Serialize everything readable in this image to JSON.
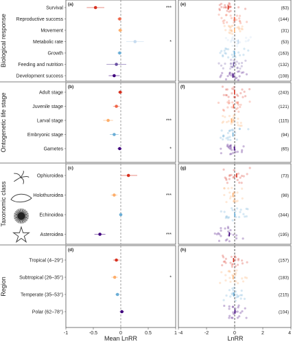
{
  "figure": {
    "left_xlabel": "Mean LnRR",
    "right_xlabel": "LnRR"
  },
  "chart_data": [
    {
      "panel": "(a)",
      "type": "scatter",
      "group": "Biological response",
      "xlim": [
        -1,
        1
      ],
      "xticks": [
        "-1",
        "-0.5",
        "0",
        "0.5",
        "1"
      ],
      "rows": [
        {
          "label": "Survival",
          "mean": -0.46,
          "ci": [
            -0.62,
            -0.3
          ],
          "sig": "***",
          "color": "#d7301f"
        },
        {
          "label": "Reproductive success",
          "mean": -0.02,
          "ci": [
            -0.06,
            0.02
          ],
          "sig": "",
          "color": "#ef6548"
        },
        {
          "label": "Movement",
          "mean": -0.01,
          "ci": [
            -0.05,
            0.03
          ],
          "sig": "",
          "color": "#fdae6b"
        },
        {
          "label": "Metabolic rate",
          "mean": 0.26,
          "ci": [
            0.1,
            0.42
          ],
          "sig": "*",
          "color": "#c6dbef"
        },
        {
          "label": "Growth",
          "mean": -0.02,
          "ci": [
            -0.06,
            0.02
          ],
          "sig": "",
          "color": "#6baed6"
        },
        {
          "label": "Feeding and nutrition",
          "mean": -0.08,
          "ci": [
            -0.26,
            0.1
          ],
          "sig": "",
          "color": "#6a51a3"
        },
        {
          "label": "Development success",
          "mean": -0.12,
          "ci": [
            -0.22,
            -0.02
          ],
          "sig": "",
          "color": "#3f007d"
        }
      ]
    },
    {
      "panel": "(b)",
      "type": "scatter",
      "group": "Ontogenetic life stage",
      "xlim": [
        -1,
        1
      ],
      "rows": [
        {
          "label": "Adult stage",
          "mean": -0.01,
          "ci": [
            -0.05,
            0.03
          ],
          "sig": "",
          "color": "#d7301f"
        },
        {
          "label": "Juvenile stage",
          "mean": -0.08,
          "ci": [
            -0.14,
            -0.02
          ],
          "sig": "",
          "color": "#ef6548"
        },
        {
          "label": "Larval stage",
          "mean": -0.23,
          "ci": [
            -0.32,
            -0.14
          ],
          "sig": "***",
          "color": "#fdae6b"
        },
        {
          "label": "Embryonic stage",
          "mean": -0.12,
          "ci": [
            -0.2,
            -0.04
          ],
          "sig": "",
          "color": "#6baed6"
        },
        {
          "label": "Gametes",
          "mean": -0.02,
          "ci": [
            -0.06,
            0.02
          ],
          "sig": "*",
          "color": "#3f007d"
        }
      ]
    },
    {
      "panel": "(c)",
      "type": "scatter",
      "group": "Taxonomic class",
      "xlim": [
        -1,
        1
      ],
      "rows": [
        {
          "label": "Ophiuroidea",
          "mean": 0.14,
          "ci": [
            0.0,
            0.3
          ],
          "sig": "",
          "color": "#d7301f"
        },
        {
          "label": "Holothuroidea",
          "mean": -0.12,
          "ci": [
            -0.18,
            -0.06
          ],
          "sig": "***",
          "color": "#fdae6b"
        },
        {
          "label": "Echinoidea",
          "mean": 0.0,
          "ci": [
            -0.03,
            0.03
          ],
          "sig": "",
          "color": "#6baed6"
        },
        {
          "label": "Asteroidea",
          "mean": -0.38,
          "ci": [
            -0.48,
            -0.28
          ],
          "sig": "***",
          "color": "#3f007d"
        }
      ]
    },
    {
      "panel": "(d)",
      "type": "scatter",
      "group": "Region",
      "xlim": [
        -1,
        1
      ],
      "rows": [
        {
          "label": "Tropical (4–29°)",
          "mean": -0.08,
          "ci": [
            -0.14,
            -0.02
          ],
          "sig": "",
          "color": "#d7301f"
        },
        {
          "label": "Subtropical (26–35°)",
          "mean": -0.11,
          "ci": [
            -0.17,
            -0.05
          ],
          "sig": "*",
          "color": "#fdae6b"
        },
        {
          "label": "Temperate (35–53°)",
          "mean": -0.06,
          "ci": [
            -0.1,
            -0.02
          ],
          "sig": "",
          "color": "#6baed6"
        },
        {
          "label": "Polar (62–78°)",
          "mean": 0.02,
          "ci": [
            -0.02,
            0.06
          ],
          "sig": "",
          "color": "#3f007d"
        }
      ]
    },
    {
      "panel": "(e)",
      "type": "scatter",
      "xlim": [
        -4,
        4
      ],
      "xticks": [
        "-4",
        "-2",
        "0",
        "2",
        "4"
      ],
      "counts": [
        "(63)",
        "(144)",
        "(31)",
        "(53)",
        "(163)",
        "(132)",
        "(108)"
      ]
    },
    {
      "panel": "(f)",
      "type": "scatter",
      "xlim": [
        -4,
        4
      ],
      "counts": [
        "(243)",
        "(121)",
        "(115)",
        "(94)",
        "(65)"
      ]
    },
    {
      "panel": "(g)",
      "type": "scatter",
      "xlim": [
        -4,
        4
      ],
      "counts": [
        "(73)",
        "(98)",
        "(344)",
        "(195)"
      ]
    },
    {
      "panel": "(h)",
      "type": "scatter",
      "xlim": [
        -4,
        4
      ],
      "counts": [
        "(157)",
        "(183)",
        "(215)",
        "(104)"
      ]
    }
  ]
}
